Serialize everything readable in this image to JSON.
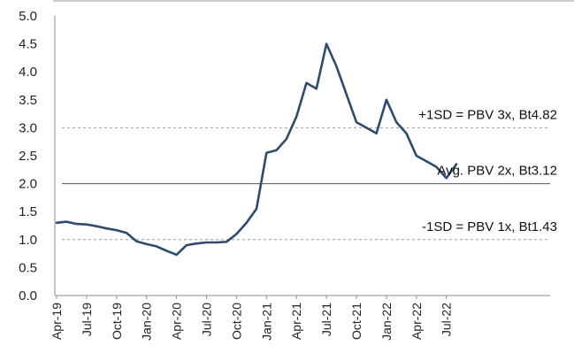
{
  "chart_data": {
    "type": "line",
    "title": "",
    "xlabel": "",
    "ylabel": "",
    "ylim": [
      0,
      5
    ],
    "grid": false,
    "legend": "none",
    "y_ticks": [
      "0.0",
      "0.5",
      "1.0",
      "1.5",
      "2.0",
      "2.5",
      "3.0",
      "3.5",
      "4.0",
      "4.5",
      "5.0"
    ],
    "x_tick_labels": [
      "Apr-19",
      "Jul-19",
      "Oct-19",
      "Jan-20",
      "Apr-20",
      "Jul-20",
      "Oct-20",
      "Jan-21",
      "Apr-21",
      "Jul-21",
      "Oct-21",
      "Jan-22",
      "Apr-22",
      "Jul-22"
    ],
    "x_start": "2019-04",
    "x_end": "2022-08",
    "reference_lines": [
      {
        "label": "+1SD = PBV 3x, Bt4.82",
        "y": 3.0,
        "style": "dashed"
      },
      {
        "label": "Avg. PBV 2x, Bt3.12",
        "y": 2.0,
        "style": "solid"
      },
      {
        "label": "-1SD = PBV 1x, Bt1.43",
        "y": 1.0,
        "style": "dashed"
      }
    ],
    "series": [
      {
        "color": "#2c4b6e",
        "x": [
          "2019-04",
          "2019-05",
          "2019-06",
          "2019-07",
          "2019-08",
          "2019-09",
          "2019-10",
          "2019-11",
          "2019-12",
          "2020-01",
          "2020-02",
          "2020-03",
          "2020-04",
          "2020-05",
          "2020-06",
          "2020-07",
          "2020-08",
          "2020-09",
          "2020-10",
          "2020-11",
          "2020-12",
          "2021-01",
          "2021-02",
          "2021-03",
          "2021-04",
          "2021-05",
          "2021-06",
          "2021-07",
          "2021-08",
          "2021-09",
          "2021-10",
          "2021-11",
          "2021-12",
          "2022-01",
          "2022-02",
          "2022-03",
          "2022-04",
          "2022-05",
          "2022-06",
          "2022-07",
          "2022-08"
        ],
        "values": [
          1.3,
          1.32,
          1.28,
          1.27,
          1.24,
          1.2,
          1.17,
          1.12,
          0.97,
          0.92,
          0.88,
          0.8,
          0.73,
          0.9,
          0.93,
          0.95,
          0.95,
          0.96,
          1.1,
          1.3,
          1.55,
          2.55,
          2.6,
          2.8,
          3.2,
          3.8,
          3.7,
          4.5,
          4.1,
          3.6,
          3.1,
          3.0,
          2.9,
          3.5,
          3.1,
          2.9,
          2.5,
          2.4,
          2.3,
          2.1,
          2.35
        ]
      }
    ]
  }
}
